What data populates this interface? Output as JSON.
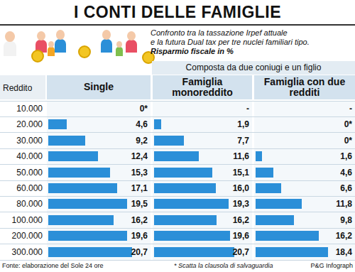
{
  "chart_data": {
    "type": "bar",
    "orientation": "horizontal",
    "title": "I CONTI DELLE FAMIGLIE",
    "subtitle": [
      "Confronto tra la tassazione Irpef attuale",
      "e la futura Dual tax per tre nuclei familiari tipo.",
      "Risparmio fiscale in %"
    ],
    "ylabel": "Reddito",
    "annotations": [
      "Composta da due coniugi e un figlio",
      "Fonte: elaborazione del Sole 24 ore",
      "* Scatta la clausola di salvaguardia",
      "P&G Infograph"
    ],
    "categories": [
      "10.000",
      "20.000",
      "30.000",
      "40.000",
      "50.000",
      "60.000",
      "80.000",
      "100.000",
      "200.000",
      "300.000"
    ],
    "series": [
      {
        "name": "Single",
        "color": "#2b8fd8",
        "values": [
          0,
          4.6,
          9.2,
          12.4,
          15.3,
          17.1,
          19.5,
          16.2,
          19.6,
          20.7
        ],
        "value_labels": [
          "0*",
          "4,6",
          "9,2",
          "12,4",
          "15,3",
          "17,1",
          "19,5",
          "16,2",
          "19,6",
          "20,7"
        ]
      },
      {
        "name": "Famiglia monoreddito",
        "color": "#2b8fd8",
        "values": [
          null,
          1.9,
          7.7,
          11.6,
          15.1,
          16.0,
          19.3,
          16.2,
          19.6,
          20.7
        ],
        "value_labels": [
          "-",
          "1,9",
          "7,7",
          "11,6",
          "15,1",
          "16,0",
          "19,3",
          "16,2",
          "19,6",
          "20,7"
        ]
      },
      {
        "name": "Famiglia con due redditi",
        "color": "#2b8fd8",
        "values": [
          null,
          0,
          0,
          1.6,
          4.6,
          6.6,
          11.8,
          9.8,
          16.2,
          18.4
        ],
        "value_labels": [
          "-",
          "0*",
          "0*",
          "1,6",
          "4,6",
          "6,6",
          "11,8",
          "9,8",
          "16,2",
          "18,4"
        ]
      }
    ],
    "xlim": [
      0,
      25
    ],
    "data_labels": true,
    "tick_labels": "y",
    "grid": false
  }
}
